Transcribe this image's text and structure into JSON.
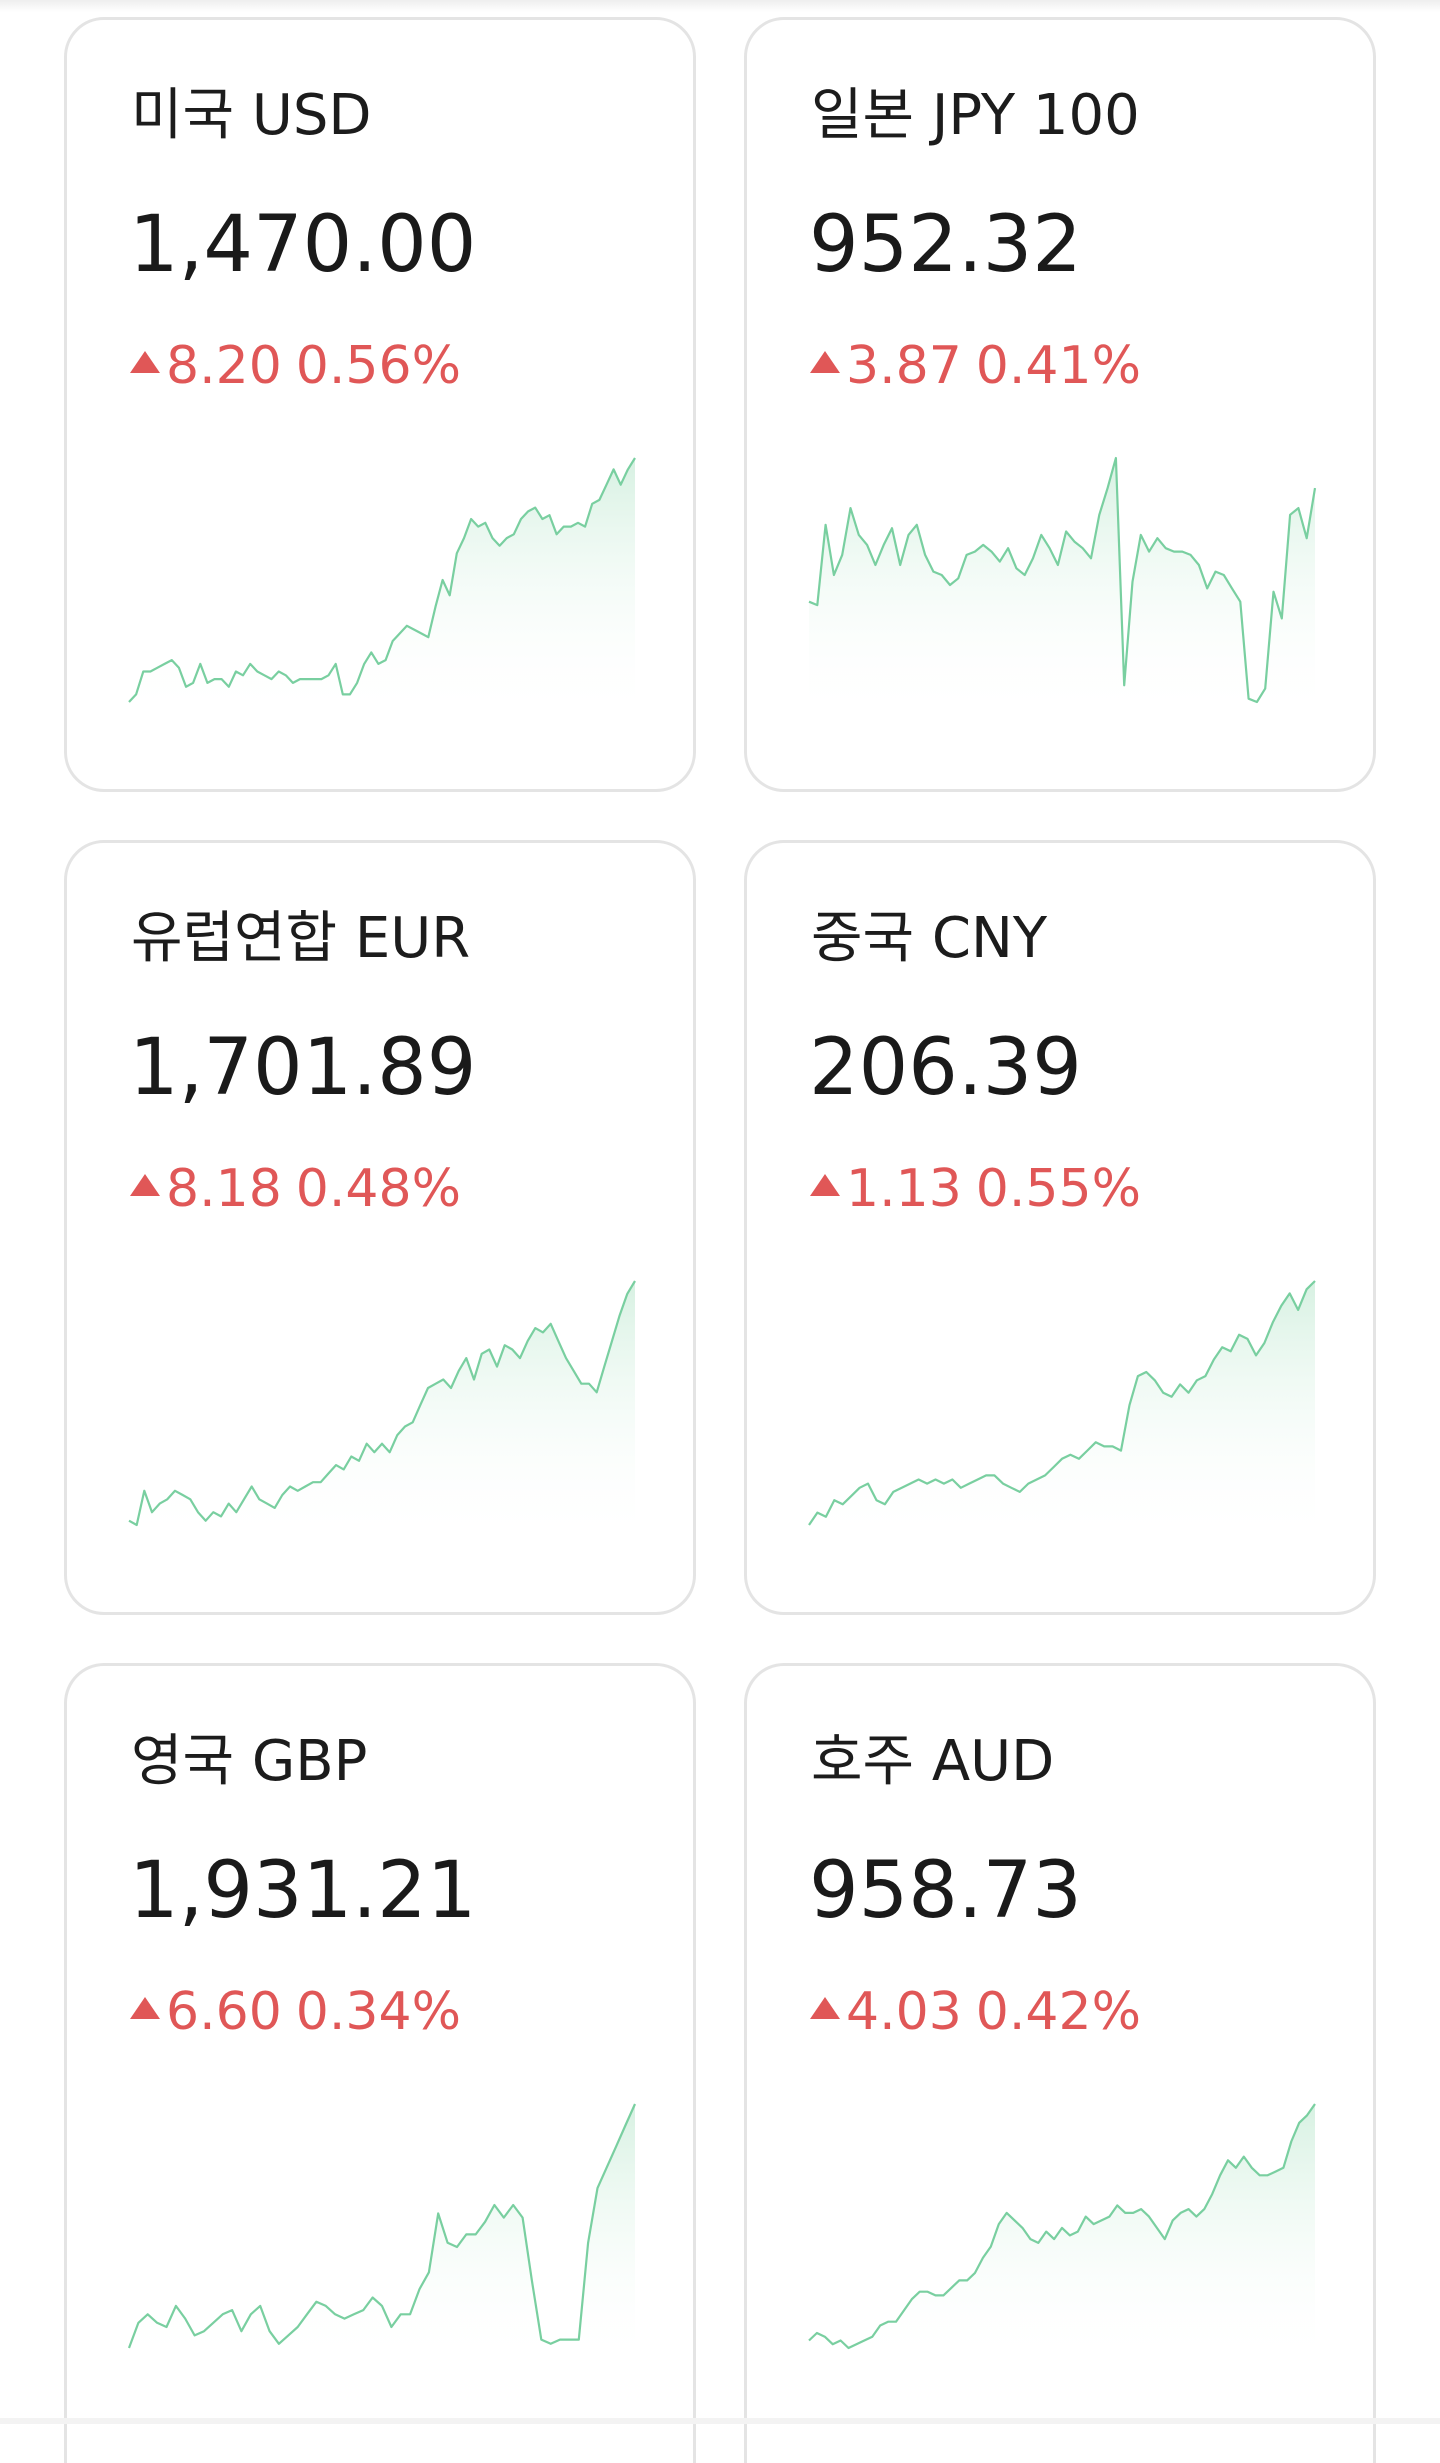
{
  "colors": {
    "up": "#e05757",
    "line": "#79cfa0",
    "fill_top": "#d7f1e2",
    "card_border": "#e4e4e4"
  },
  "icons": {
    "change_up": "triangle-up-icon"
  },
  "currencies": [
    {
      "id": "usd",
      "name": "미국 USD",
      "rate": "1,470.00",
      "change": "8.20",
      "change_pct": "0.56%",
      "trend": "up",
      "series": [
        23,
        25,
        31,
        31,
        32,
        33,
        34,
        32,
        27,
        28,
        33,
        28,
        29,
        29,
        27,
        31,
        30,
        33,
        31,
        30,
        29,
        31,
        30,
        28,
        29,
        29,
        29,
        29,
        30,
        33,
        25,
        25,
        28,
        33,
        36,
        33,
        34,
        39,
        41,
        43,
        42,
        41,
        40,
        48,
        55,
        51,
        62,
        66,
        71,
        69,
        70,
        66,
        64,
        66,
        67,
        71,
        73,
        74,
        71,
        72,
        67,
        69,
        69,
        70,
        69,
        75,
        76,
        80,
        84,
        80,
        84,
        87
      ]
    },
    {
      "id": "jpy",
      "name": "일본 JPY 100",
      "rate": "952.32",
      "change": "3.87",
      "change_pct": "0.41%",
      "trend": "up",
      "series": [
        52,
        51,
        75,
        60,
        66,
        80,
        72,
        69,
        63,
        69,
        74,
        63,
        72,
        75,
        66,
        61,
        60,
        57,
        59,
        66,
        67,
        69,
        67,
        64,
        68,
        62,
        60,
        65,
        72,
        68,
        63,
        73,
        70,
        68,
        65,
        78,
        86,
        95,
        27,
        58,
        72,
        67,
        71,
        68,
        67,
        67,
        66,
        63,
        56,
        61,
        60,
        56,
        52,
        23,
        22,
        26,
        55,
        47,
        78,
        80,
        71,
        86
      ]
    },
    {
      "id": "eur",
      "name": "유럽연합 EUR",
      "rate": "1,701.89",
      "change": "8.18",
      "change_pct": "0.48%",
      "trend": "up",
      "series": [
        22,
        21,
        29,
        24,
        26,
        27,
        29,
        28,
        27,
        24,
        22,
        24,
        23,
        26,
        24,
        27,
        30,
        27,
        26,
        25,
        28,
        30,
        29,
        30,
        31,
        31,
        33,
        35,
        34,
        37,
        36,
        40,
        38,
        40,
        38,
        42,
        44,
        45,
        49,
        53,
        54,
        55,
        53,
        57,
        60,
        55,
        61,
        62,
        58,
        63,
        62,
        60,
        64,
        67,
        66,
        68,
        64,
        60,
        57,
        54,
        54,
        52,
        58,
        64,
        70,
        75,
        78
      ]
    },
    {
      "id": "cny",
      "name": "중국 CNY",
      "rate": "206.39",
      "change": "1.13",
      "change_pct": "0.55%",
      "trend": "up",
      "series": [
        21,
        24,
        23,
        27,
        26,
        28,
        30,
        31,
        27,
        26,
        29,
        30,
        31,
        32,
        31,
        32,
        31,
        32,
        30,
        31,
        32,
        33,
        33,
        31,
        30,
        29,
        31,
        32,
        33,
        35,
        37,
        38,
        37,
        39,
        41,
        40,
        40,
        39,
        50,
        57,
        58,
        56,
        53,
        52,
        55,
        53,
        56,
        57,
        61,
        64,
        63,
        67,
        66,
        62,
        65,
        70,
        74,
        77,
        73,
        78,
        80
      ]
    },
    {
      "id": "gbp",
      "name": "영국 GBP",
      "rate": "1,931.21",
      "change": "6.60",
      "change_pct": "0.34%",
      "trend": "up",
      "series": [
        22,
        28,
        30,
        28,
        27,
        32,
        29,
        25,
        26,
        28,
        30,
        31,
        26,
        30,
        32,
        26,
        23,
        25,
        27,
        30,
        33,
        32,
        30,
        29,
        30,
        31,
        34,
        32,
        27,
        30,
        30,
        36,
        40,
        54,
        47,
        46,
        49,
        49,
        52,
        56,
        53,
        56,
        53,
        38,
        24,
        23,
        24,
        24,
        24,
        47,
        60,
        65,
        70,
        75,
        80
      ]
    },
    {
      "id": "aud",
      "name": "호주 AUD",
      "rate": "958.73",
      "change": "4.03",
      "change_pct": "0.42%",
      "trend": "up",
      "series": [
        22,
        24,
        23,
        21,
        22,
        20,
        21,
        22,
        23,
        26,
        27,
        27,
        30,
        33,
        35,
        35,
        34,
        34,
        36,
        38,
        38,
        40,
        44,
        47,
        53,
        56,
        54,
        52,
        49,
        48,
        51,
        49,
        52,
        50,
        51,
        55,
        53,
        54,
        55,
        58,
        56,
        56,
        57,
        55,
        52,
        49,
        54,
        56,
        57,
        55,
        57,
        61,
        66,
        70,
        68,
        71,
        68,
        66,
        66,
        67,
        68,
        75,
        80,
        82,
        85
      ]
    }
  ]
}
